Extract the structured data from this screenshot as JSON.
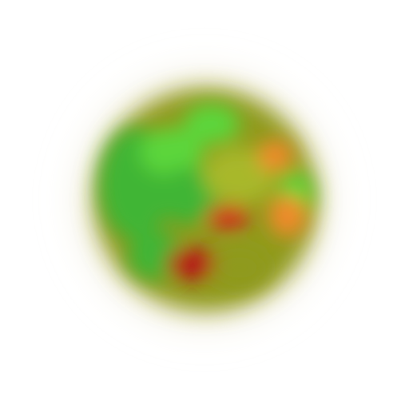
{
  "image": {
    "subject": "blurred-sphere",
    "background_color": "#ffffff",
    "palette": {
      "halo_outer": "#d8cfa0",
      "halo_inner": "#bfae5a",
      "olive": "#8f9a1e",
      "green": "#3fb534",
      "bright_green": "#5cd63a",
      "yellow_green": "#a8b82a",
      "orange": "#f08a2a",
      "red": "#d8281c",
      "dark_red": "#b81414"
    }
  }
}
